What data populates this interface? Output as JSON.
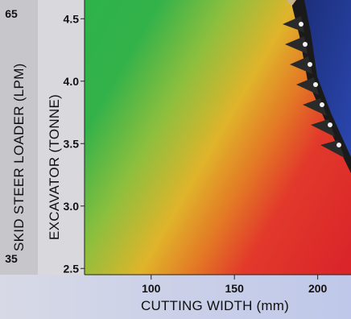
{
  "chart_data": {
    "type": "heatmap",
    "xlabel": "CUTTING WIDTH (mm)",
    "x_ticks": [
      100,
      150,
      200
    ],
    "xlim": [
      60,
      220
    ],
    "y_axes": [
      {
        "label": "EXCAVATOR (TONNE)",
        "ticks": [
          4.5,
          4.0,
          3.5,
          3.0,
          2.5
        ],
        "ylim": [
          2.45,
          4.65
        ]
      },
      {
        "label": "SKID STEER LOADER (LPM)",
        "ticks": [
          65,
          35
        ]
      }
    ],
    "color_scale": {
      "low_match": "#d9232a",
      "mid": "#e0b42b",
      "high_match": "#2db34a"
    },
    "grid": false
  }
}
